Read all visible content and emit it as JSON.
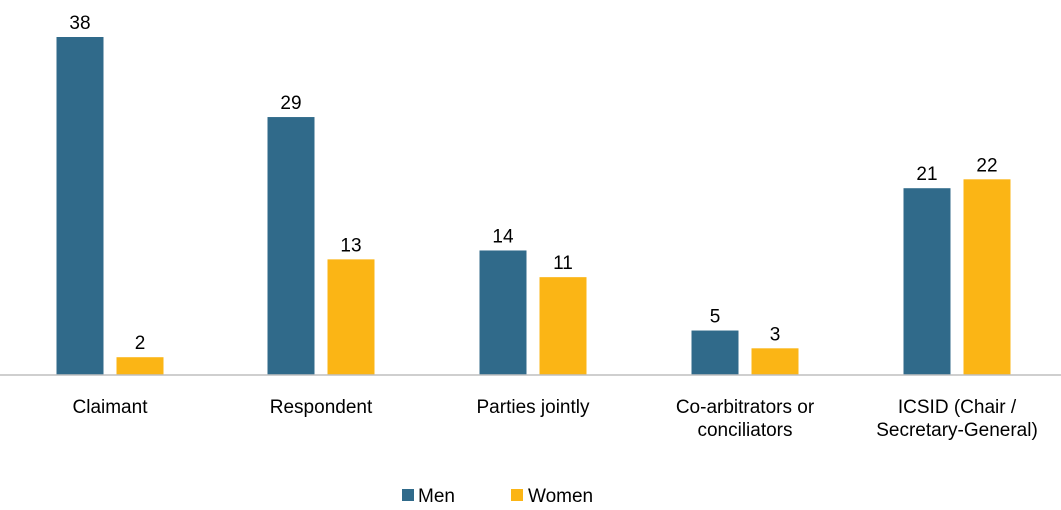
{
  "chart_data": {
    "type": "bar",
    "categories": [
      [
        "Claimant"
      ],
      [
        "Respondent"
      ],
      [
        "Parties jointly"
      ],
      [
        "Co-arbitrators or",
        "conciliators"
      ],
      [
        "ICSID (Chair /",
        "Secretary-General)"
      ]
    ],
    "series": [
      {
        "name": "Men",
        "color": "#306a8a",
        "values": [
          38,
          29,
          14,
          5,
          21
        ]
      },
      {
        "name": "Women",
        "color": "#fbb515",
        "values": [
          2,
          13,
          11,
          3,
          22
        ]
      }
    ],
    "ylim": [
      0,
      38
    ],
    "grid": false,
    "legend_position": "bottom-center",
    "axis_color": "#bfbfbf"
  }
}
